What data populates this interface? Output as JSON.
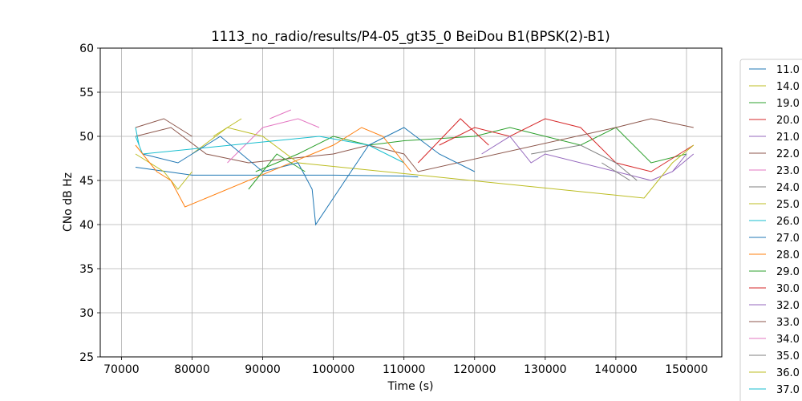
{
  "chart_data": {
    "type": "line",
    "title": "1113_no_radio/results/P4-05_gt35_0 BeiDou B1(BPSK(2)-B1)",
    "xlabel": "Time (s)",
    "ylabel": "CNo dB Hz",
    "xlim": [
      67000,
      155000
    ],
    "ylim": [
      25,
      60
    ],
    "xticks": [
      70000,
      80000,
      90000,
      100000,
      110000,
      120000,
      130000,
      140000,
      150000
    ],
    "yticks": [
      25,
      30,
      35,
      40,
      45,
      50,
      55,
      60
    ],
    "grid": true,
    "legend_position": "outside-right",
    "series": [
      {
        "name": "11.0",
        "color": "#1f77b4",
        "x": [
          72000,
          80000,
          90000,
          100000,
          110000,
          112000
        ],
        "y": [
          46.5,
          45.6,
          45.6,
          45.6,
          45.5,
          45.4
        ]
      },
      {
        "name": "14.0",
        "color": "#bcbd22",
        "x": [
          72000,
          76000,
          78000,
          80000
        ],
        "y": [
          48,
          46,
          44,
          46
        ]
      },
      {
        "name": "19.0",
        "color": "#2ca02c",
        "x": [
          89000,
          95000,
          100000,
          105000,
          110000,
          120000,
          125000,
          130000,
          135000,
          140000,
          145000,
          150000
        ],
        "y": [
          46,
          48,
          50,
          49,
          49.5,
          50,
          51,
          50,
          49,
          51,
          47,
          48
        ]
      },
      {
        "name": "20.0",
        "color": "#d62728",
        "x": [
          115000,
          120000,
          125000,
          130000,
          135000,
          140000,
          145000,
          151000
        ],
        "y": [
          49,
          51,
          50,
          52,
          51,
          47,
          46,
          49
        ]
      },
      {
        "name": "21.0",
        "color": "#9467bd",
        "x": [
          121000,
          125000,
          128000,
          130000,
          145000,
          148000,
          151000
        ],
        "y": [
          48,
          50,
          47,
          48,
          45,
          46,
          48
        ]
      },
      {
        "name": "22.0",
        "color": "#8c564b",
        "x": [
          72000,
          77000,
          82000,
          88000,
          100000,
          105000,
          110000,
          112000,
          140000,
          145000,
          151000
        ],
        "y": [
          50,
          51,
          48,
          47,
          48,
          49,
          48,
          46,
          51,
          52,
          51
        ]
      },
      {
        "name": "23.0",
        "color": "#e377c2",
        "x": [
          85000,
          90000,
          95000,
          98000
        ],
        "y": [
          47,
          51,
          52,
          51
        ]
      },
      {
        "name": "24.0",
        "color": "#7f7f7f",
        "x": [
          128000,
          135000,
          140000,
          143000
        ],
        "y": [
          48,
          49,
          47,
          45
        ]
      },
      {
        "name": "25.0",
        "color": "#bcbd22",
        "x": [
          80000,
          85000,
          90000,
          95000,
          144000,
          148000,
          151000
        ],
        "y": [
          48,
          51,
          50,
          47,
          43,
          47,
          49
        ]
      },
      {
        "name": "26.0",
        "color": "#17becf",
        "x": [
          72000,
          73000,
          98000,
          105000,
          110000
        ],
        "y": [
          50,
          48,
          50,
          49,
          47
        ]
      },
      {
        "name": "27.0",
        "color": "#1f77b4",
        "x": [
          73000,
          78000,
          84000,
          90000,
          95000,
          97000,
          97500,
          105000,
          110000,
          115000,
          120000
        ],
        "y": [
          48,
          47,
          50,
          46,
          47,
          44,
          40,
          49,
          51,
          48,
          46
        ]
      },
      {
        "name": "28.0",
        "color": "#ff7f0e",
        "x": [
          72000,
          75000,
          77000,
          79000,
          100000,
          104000,
          107000,
          111000
        ],
        "y": [
          49,
          46,
          45,
          42,
          49,
          51,
          50,
          46
        ]
      },
      {
        "name": "29.0",
        "color": "#2ca02c",
        "x": [
          88000,
          92000,
          96000
        ],
        "y": [
          44,
          48,
          46
        ]
      },
      {
        "name": "30.0",
        "color": "#d62728",
        "x": [
          112000,
          118000,
          122000
        ],
        "y": [
          47,
          52,
          49
        ]
      },
      {
        "name": "32.0",
        "color": "#9467bd",
        "x": [
          148000,
          150000
        ],
        "y": [
          46,
          48
        ]
      },
      {
        "name": "33.0",
        "color": "#8c564b",
        "x": [
          72000,
          76000,
          80000
        ],
        "y": [
          51,
          52,
          50
        ]
      },
      {
        "name": "34.0",
        "color": "#e377c2",
        "x": [
          91000,
          94000
        ],
        "y": [
          52,
          53
        ]
      },
      {
        "name": "35.0",
        "color": "#7f7f7f",
        "x": [
          138000,
          142000
        ],
        "y": [
          47,
          45
        ]
      },
      {
        "name": "36.0",
        "color": "#bcbd22",
        "x": [
          83000,
          87000
        ],
        "y": [
          50,
          52
        ]
      },
      {
        "name": "37.0",
        "color": "#17becf",
        "x": [
          72000,
          72500
        ],
        "y": [
          51,
          49
        ]
      }
    ]
  }
}
